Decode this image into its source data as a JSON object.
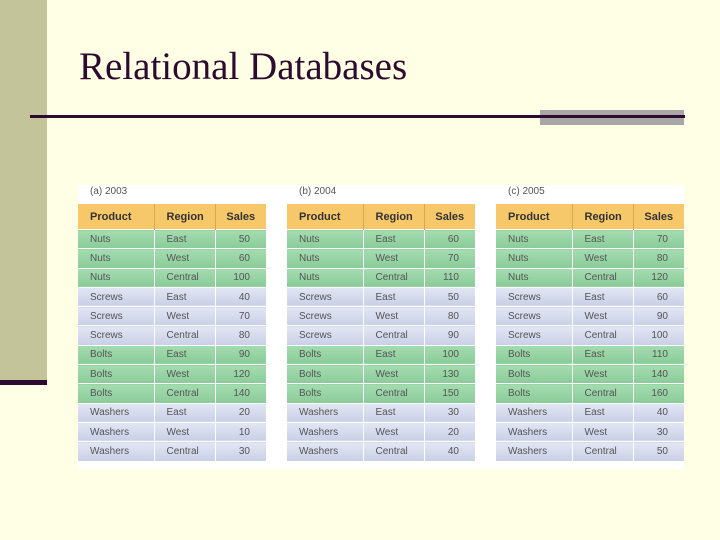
{
  "slide": {
    "title": "Relational Databases"
  },
  "colors": {
    "background": "#ffffe5",
    "title": "#2e0a2e",
    "header_row": "#f6c86a",
    "green_rows": "#8acb98",
    "blue_rows": "#c9cfe6"
  },
  "tables": [
    {
      "caption": "(a) 2003",
      "headers": [
        "Product",
        "Region",
        "Sales"
      ],
      "rows": [
        [
          "Nuts",
          "East",
          "50"
        ],
        [
          "Nuts",
          "West",
          "60"
        ],
        [
          "Nuts",
          "Central",
          "100"
        ],
        [
          "Screws",
          "East",
          "40"
        ],
        [
          "Screws",
          "West",
          "70"
        ],
        [
          "Screws",
          "Central",
          "80"
        ],
        [
          "Bolts",
          "East",
          "90"
        ],
        [
          "Bolts",
          "West",
          "120"
        ],
        [
          "Bolts",
          "Central",
          "140"
        ],
        [
          "Washers",
          "East",
          "20"
        ],
        [
          "Washers",
          "West",
          "10"
        ],
        [
          "Washers",
          "Central",
          "30"
        ]
      ]
    },
    {
      "caption": "(b) 2004",
      "headers": [
        "Product",
        "Region",
        "Sales"
      ],
      "rows": [
        [
          "Nuts",
          "East",
          "60"
        ],
        [
          "Nuts",
          "West",
          "70"
        ],
        [
          "Nuts",
          "Central",
          "110"
        ],
        [
          "Screws",
          "East",
          "50"
        ],
        [
          "Screws",
          "West",
          "80"
        ],
        [
          "Screws",
          "Central",
          "90"
        ],
        [
          "Bolts",
          "East",
          "100"
        ],
        [
          "Bolts",
          "West",
          "130"
        ],
        [
          "Bolts",
          "Central",
          "150"
        ],
        [
          "Washers",
          "East",
          "30"
        ],
        [
          "Washers",
          "West",
          "20"
        ],
        [
          "Washers",
          "Central",
          "40"
        ]
      ]
    },
    {
      "caption": "(c) 2005",
      "headers": [
        "Product",
        "Region",
        "Sales"
      ],
      "rows": [
        [
          "Nuts",
          "East",
          "70"
        ],
        [
          "Nuts",
          "West",
          "80"
        ],
        [
          "Nuts",
          "Central",
          "120"
        ],
        [
          "Screws",
          "East",
          "60"
        ],
        [
          "Screws",
          "West",
          "90"
        ],
        [
          "Screws",
          "Central",
          "100"
        ],
        [
          "Bolts",
          "East",
          "110"
        ],
        [
          "Bolts",
          "West",
          "140"
        ],
        [
          "Bolts",
          "Central",
          "160"
        ],
        [
          "Washers",
          "East",
          "40"
        ],
        [
          "Washers",
          "West",
          "30"
        ],
        [
          "Washers",
          "Central",
          "50"
        ]
      ]
    }
  ]
}
